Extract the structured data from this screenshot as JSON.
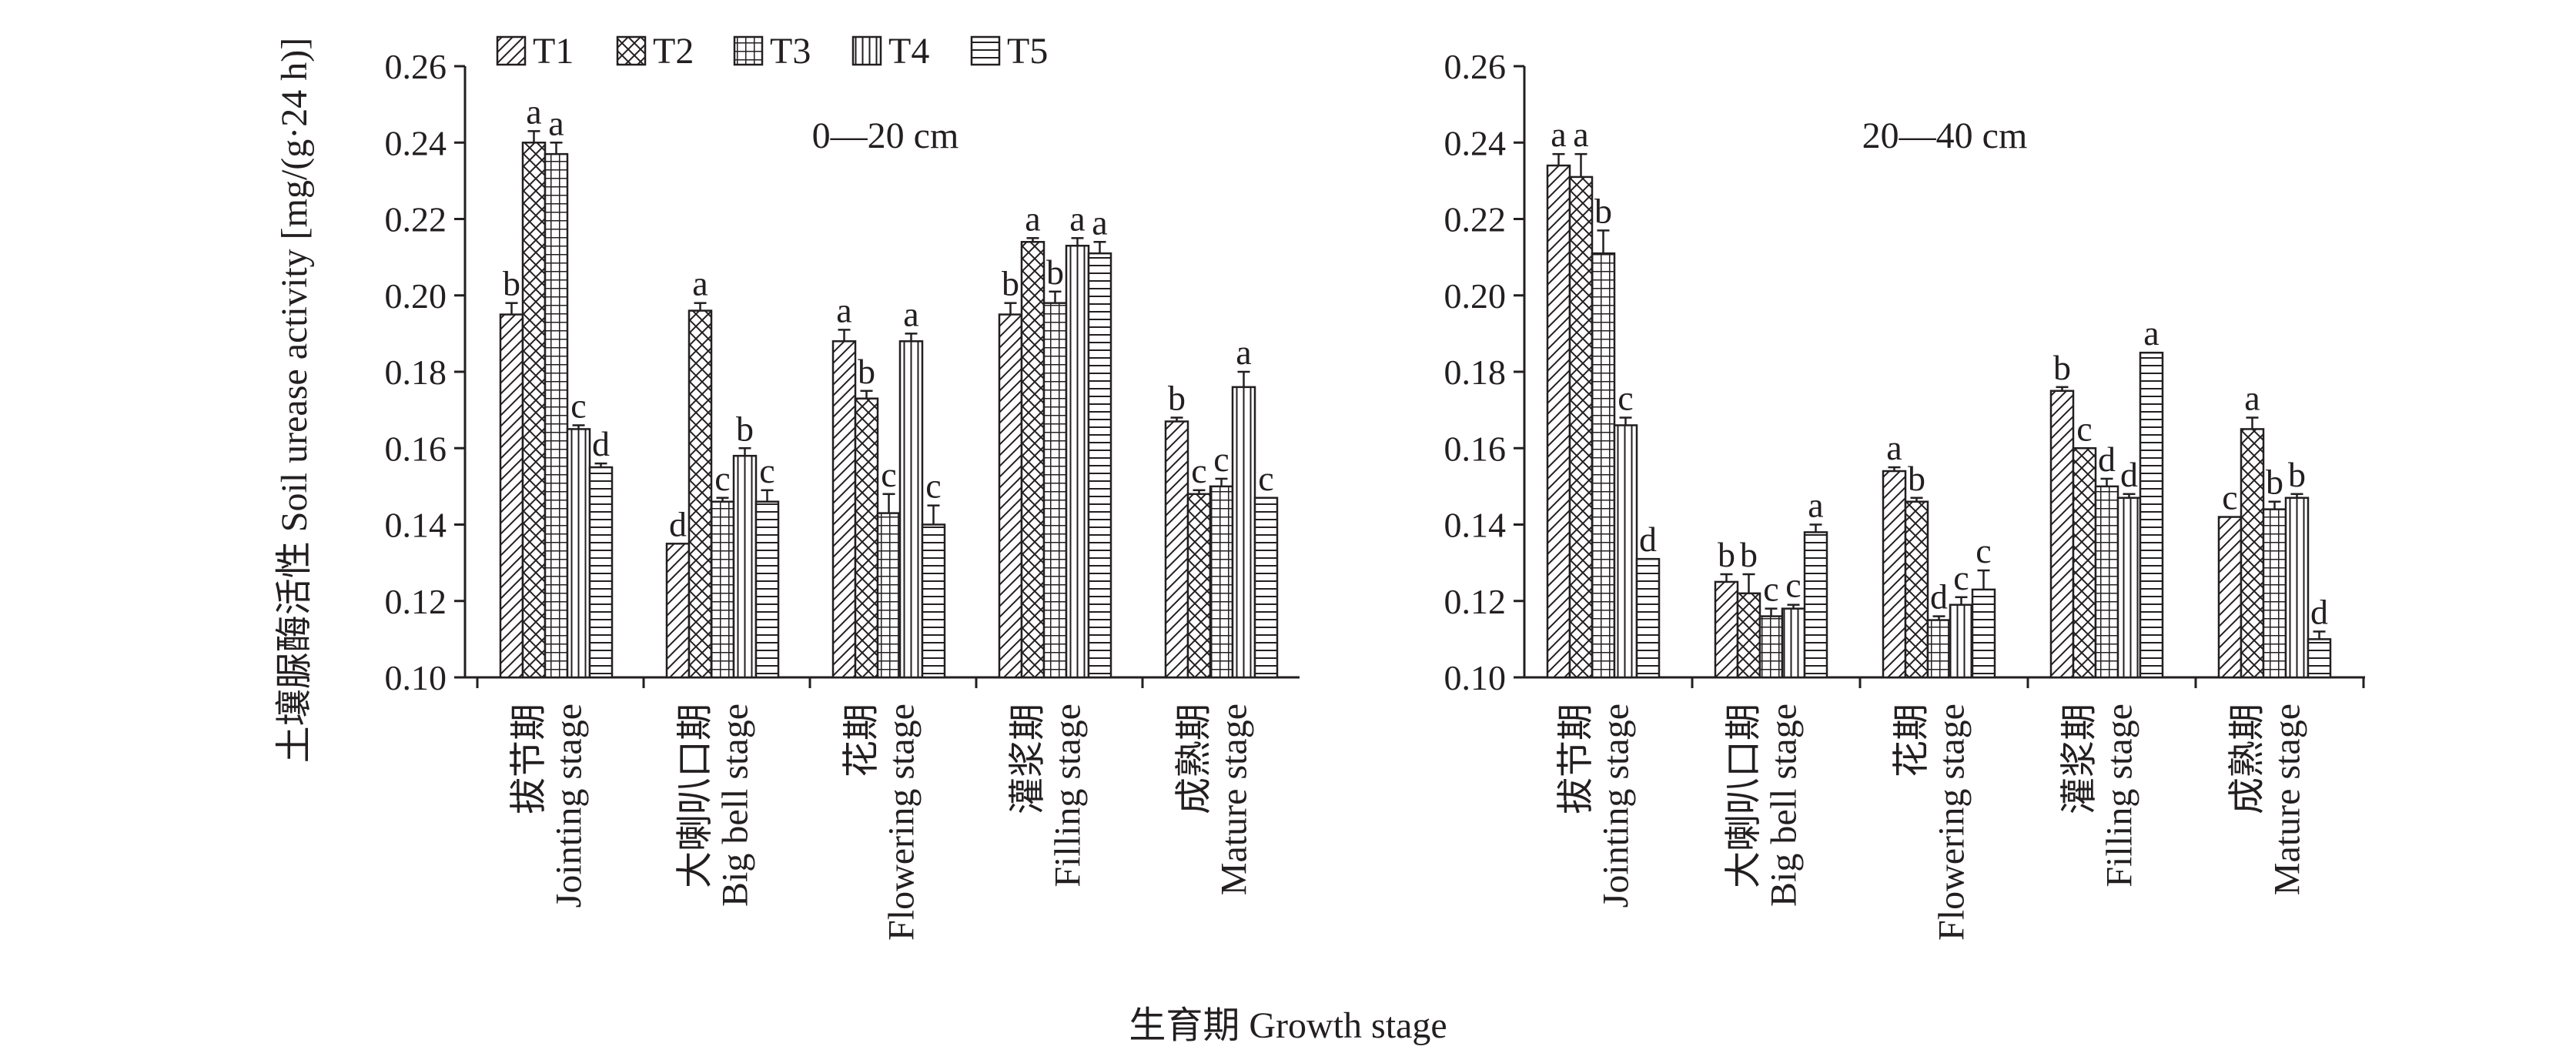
{
  "x_axis_title": "生育期 Growth stage",
  "y_axis_title": "土壤脲酶活性 Soil urease activity [mg/(g·24 h)]",
  "legend": [
    "T1",
    "T2",
    "T3",
    "T4",
    "T5"
  ],
  "colors": {
    "ink": "#231f20",
    "fill": "#ffffff"
  },
  "chart_data": [
    {
      "type": "bar",
      "title": "0—20 cm",
      "ylim": [
        0.1,
        0.26
      ],
      "yticks": [
        "0.10",
        "0.12",
        "0.14",
        "0.16",
        "0.18",
        "0.20",
        "0.22",
        "0.24",
        "0.26"
      ],
      "categories": [
        [
          "拔节期",
          "Jointing stage"
        ],
        [
          "大喇叭口期",
          "Big bell stage"
        ],
        [
          "花期",
          "Flowering stage"
        ],
        [
          "灌浆期",
          "Filling stage"
        ],
        [
          "成熟期",
          "Mature stage"
        ]
      ],
      "series": [
        {
          "name": "T1",
          "pattern": "diag",
          "values": [
            0.195,
            0.135,
            0.188,
            0.195,
            0.167
          ],
          "errors": [
            0.003,
            0.0,
            0.003,
            0.003,
            0.001
          ],
          "letters": [
            "b",
            "d",
            "a",
            "b",
            "b"
          ]
        },
        {
          "name": "T2",
          "pattern": "cross",
          "values": [
            0.24,
            0.196,
            0.173,
            0.214,
            0.148
          ],
          "errors": [
            0.003,
            0.002,
            0.002,
            0.001,
            0.001
          ],
          "letters": [
            "a",
            "a",
            "b",
            "a",
            "c"
          ]
        },
        {
          "name": "T3",
          "pattern": "grid",
          "values": [
            0.237,
            0.146,
            0.143,
            0.198,
            0.15
          ],
          "errors": [
            0.003,
            0.001,
            0.005,
            0.003,
            0.002
          ],
          "letters": [
            "a",
            "c",
            "c",
            "b",
            "c"
          ]
        },
        {
          "name": "T4",
          "pattern": "vert",
          "values": [
            0.165,
            0.158,
            0.188,
            0.213,
            0.176
          ],
          "errors": [
            0.001,
            0.002,
            0.002,
            0.002,
            0.004
          ],
          "letters": [
            "c",
            "b",
            "a",
            "a",
            "a"
          ]
        },
        {
          "name": "T5",
          "pattern": "horiz",
          "values": [
            0.155,
            0.146,
            0.14,
            0.211,
            0.147
          ],
          "errors": [
            0.001,
            0.003,
            0.005,
            0.003,
            0.0
          ],
          "letters": [
            "d",
            "c",
            "c",
            "a",
            "c"
          ]
        }
      ]
    },
    {
      "type": "bar",
      "title": "20—40 cm",
      "ylim": [
        0.1,
        0.26
      ],
      "yticks": [
        "0.10",
        "0.12",
        "0.14",
        "0.16",
        "0.18",
        "0.20",
        "0.22",
        "0.24",
        "0.26"
      ],
      "categories": [
        [
          "拔节期",
          "Jointing stage"
        ],
        [
          "大喇叭口期",
          "Big bell stage"
        ],
        [
          "花期",
          "Flowering stage"
        ],
        [
          "灌浆期",
          "Filling stage"
        ],
        [
          "成熟期",
          "Mature stage"
        ]
      ],
      "series": [
        {
          "name": "T1",
          "pattern": "diag",
          "values": [
            0.234,
            0.125,
            0.154,
            0.175,
            0.142
          ],
          "errors": [
            0.003,
            0.002,
            0.001,
            0.001,
            0.0
          ],
          "letters": [
            "a",
            "b",
            "a",
            "b",
            "c"
          ]
        },
        {
          "name": "T2",
          "pattern": "cross",
          "values": [
            0.231,
            0.122,
            0.146,
            0.16,
            0.165
          ],
          "errors": [
            0.006,
            0.005,
            0.001,
            0.0,
            0.003
          ],
          "letters": [
            "a",
            "b",
            "b",
            "c",
            "a"
          ]
        },
        {
          "name": "T3",
          "pattern": "grid",
          "values": [
            0.211,
            0.116,
            0.115,
            0.15,
            0.144
          ],
          "errors": [
            0.006,
            0.002,
            0.001,
            0.002,
            0.002
          ],
          "letters": [
            "b",
            "c",
            "d",
            "d",
            "b"
          ]
        },
        {
          "name": "T4",
          "pattern": "vert",
          "values": [
            0.166,
            0.118,
            0.119,
            0.147,
            0.147
          ],
          "errors": [
            0.002,
            0.001,
            0.002,
            0.001,
            0.001
          ],
          "letters": [
            "c",
            "c",
            "c",
            "d",
            "b"
          ]
        },
        {
          "name": "T5",
          "pattern": "horiz",
          "values": [
            0.131,
            0.138,
            0.123,
            0.185,
            0.11
          ],
          "errors": [
            0.0,
            0.002,
            0.005,
            0.0,
            0.002
          ],
          "letters": [
            "d",
            "a",
            "c",
            "a",
            "d"
          ]
        }
      ]
    }
  ]
}
